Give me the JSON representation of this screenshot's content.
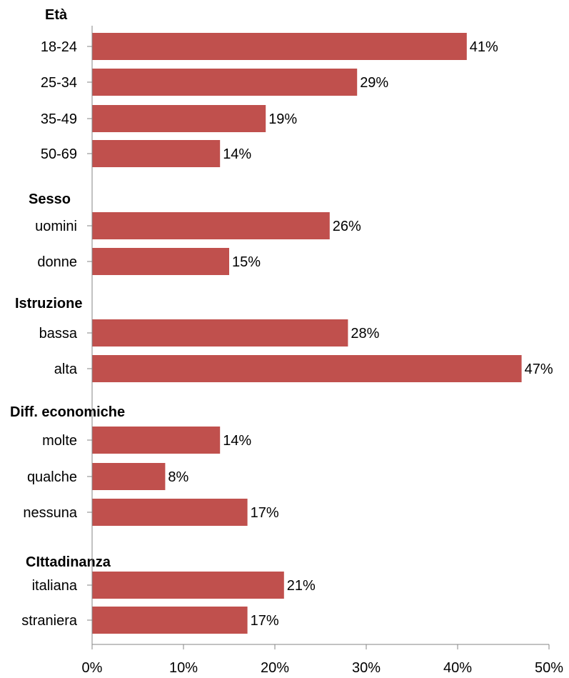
{
  "chart_data": {
    "type": "bar",
    "orientation": "horizontal",
    "bar_color": "#c0504d",
    "xlim": [
      0,
      50
    ],
    "x_ticks": [
      "0%",
      "10%",
      "20%",
      "30%",
      "40%",
      "50%"
    ],
    "grid": false,
    "groups": [
      {
        "title": "Età",
        "categories": [
          "18-24",
          "25-34",
          "35-49",
          "50-69"
        ],
        "values": [
          41,
          29,
          19,
          14
        ],
        "value_labels": [
          "41%",
          "29%",
          "19%",
          "14%"
        ]
      },
      {
        "title": "Sesso",
        "categories": [
          "uomini",
          "donne"
        ],
        "values": [
          26,
          15
        ],
        "value_labels": [
          "26%",
          "15%"
        ]
      },
      {
        "title": "Istruzione",
        "categories": [
          "bassa",
          "alta"
        ],
        "values": [
          28,
          47
        ],
        "value_labels": [
          "28%",
          "47%"
        ]
      },
      {
        "title": "Diff. economiche",
        "categories": [
          "molte",
          "qualche",
          "nessuna"
        ],
        "values": [
          14,
          8,
          17
        ],
        "value_labels": [
          "14%",
          "8%",
          "17%"
        ]
      },
      {
        "title": "CIttadinanza",
        "categories": [
          "italiana",
          "straniera"
        ],
        "values": [
          21,
          17
        ],
        "value_labels": [
          "21%",
          "17%"
        ]
      }
    ]
  }
}
